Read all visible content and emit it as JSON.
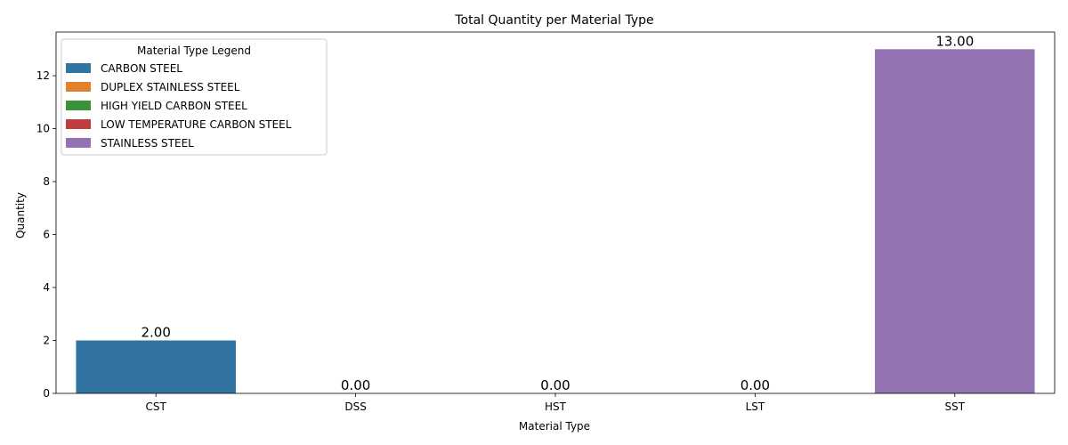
{
  "chart_data": {
    "type": "bar",
    "title": "Total Quantity per Material Type",
    "xlabel": "Material Type",
    "ylabel": "Quantity",
    "categories": [
      "CST",
      "DSS",
      "HST",
      "LST",
      "SST"
    ],
    "values": [
      2.0,
      0.0,
      0.0,
      0.0,
      13.0
    ],
    "data_labels": [
      "2.00",
      "0.00",
      "0.00",
      "0.00",
      "13.00"
    ],
    "colors": [
      "#3274a1",
      "#e1812c",
      "#3a923a",
      "#c03d3e",
      "#9372b2"
    ],
    "ylim": [
      0,
      13.65
    ],
    "yticks": [
      0,
      2,
      4,
      6,
      8,
      10,
      12
    ],
    "grid": false,
    "legend": {
      "title": "Material Type Legend",
      "placement": "top-left",
      "entries": [
        {
          "label": "CARBON STEEL",
          "color": "#3274a1"
        },
        {
          "label": "DUPLEX STAINLESS STEEL",
          "color": "#e1812c"
        },
        {
          "label": "HIGH YIELD CARBON STEEL",
          "color": "#3a923a"
        },
        {
          "label": "LOW TEMPERATURE CARBON STEEL",
          "color": "#c03d3e"
        },
        {
          "label": "STAINLESS STEEL",
          "color": "#9372b2"
        }
      ]
    }
  }
}
